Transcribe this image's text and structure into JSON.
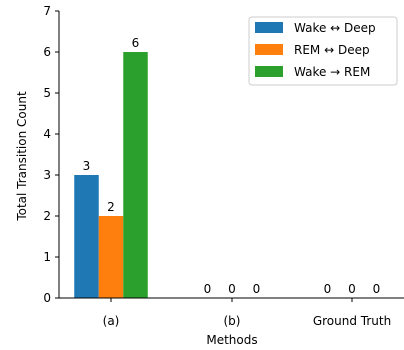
{
  "chart_data": {
    "type": "bar",
    "title": "",
    "xlabel": "Methods",
    "ylabel": "Total Transition Count",
    "ylim": [
      0,
      7
    ],
    "yticks": [
      0,
      1,
      2,
      3,
      4,
      5,
      6,
      7
    ],
    "grid": false,
    "legend_position": "top-right",
    "categories": [
      "(a)",
      "(b)",
      "Ground Truth"
    ],
    "series": [
      {
        "name": "Wake ↔ Deep",
        "color": "#1f77b4",
        "values": [
          3,
          0,
          0
        ]
      },
      {
        "name": "REM ↔ Deep",
        "color": "#ff7f0e",
        "values": [
          2,
          0,
          0
        ]
      },
      {
        "name": "Wake → REM",
        "color": "#2ca02c",
        "values": [
          6,
          0,
          0
        ]
      }
    ]
  }
}
